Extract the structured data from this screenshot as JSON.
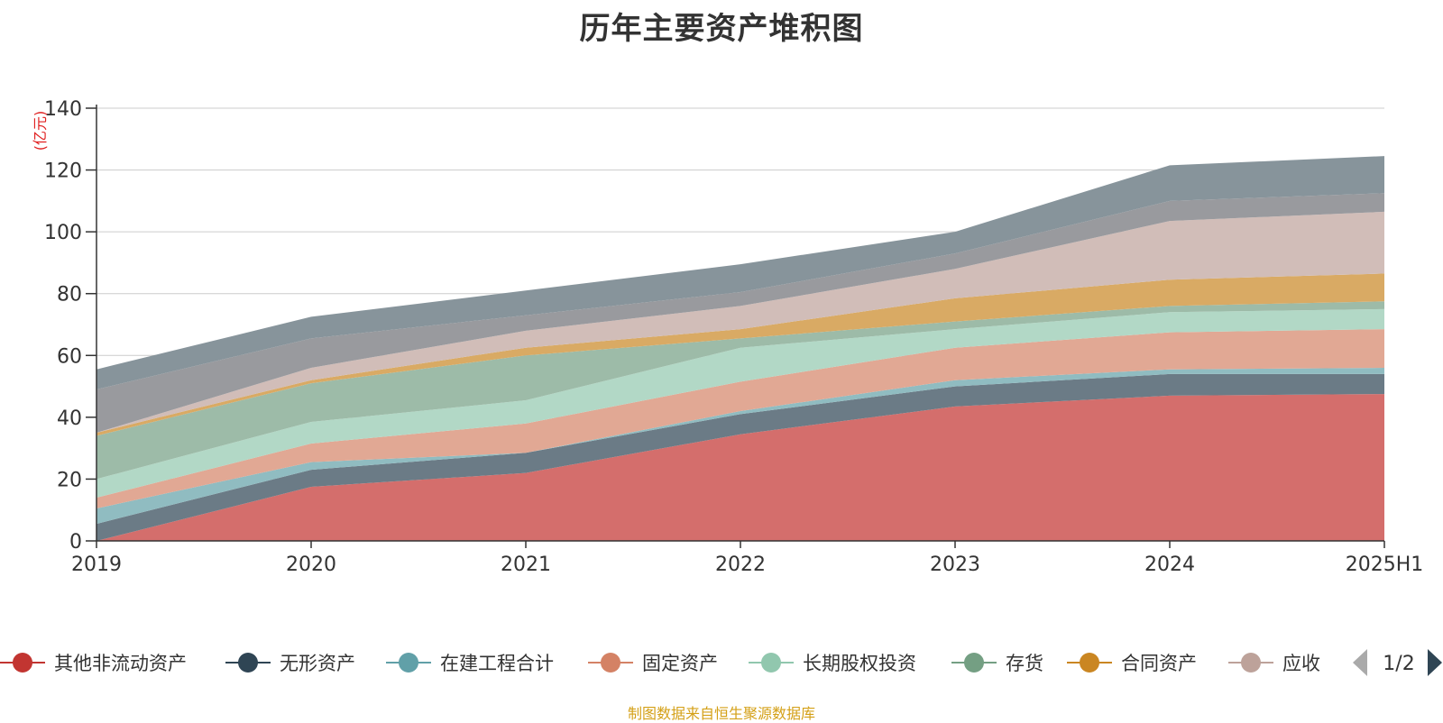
{
  "chart_data": {
    "type": "area",
    "stacked": true,
    "title": "历年主要资产堆积图",
    "unit_label": "(亿元)",
    "x": [
      "2019",
      "2020",
      "2021",
      "2022",
      "2023",
      "2024",
      "2025H1"
    ],
    "ylim": [
      0,
      140
    ],
    "yticks": [
      0,
      20,
      40,
      60,
      80,
      100,
      120,
      140
    ],
    "grid": true,
    "legend_position": "bottom",
    "legend_page": "1/2",
    "series": [
      {
        "name": "其他非流动资产",
        "color": "#c23531",
        "fill": "#d46e6c",
        "values": [
          0,
          17.5,
          22,
          34.5,
          43.5,
          47,
          47.5
        ]
      },
      {
        "name": "无形资产",
        "color": "#2f4554",
        "fill": "#6b7b86",
        "values": [
          5.5,
          5.5,
          6.5,
          6.5,
          6.5,
          7,
          6.5
        ]
      },
      {
        "name": "在建工程合计",
        "color": "#61a0a8",
        "fill": "#90bcc1",
        "values": [
          5,
          2.5,
          0,
          1,
          2,
          1.5,
          2
        ]
      },
      {
        "name": "固定资产",
        "color": "#d48265",
        "fill": "#e1a894",
        "values": [
          3.5,
          6,
          9.5,
          9.5,
          10.5,
          12,
          12.5
        ]
      },
      {
        "name": "长期股权投资",
        "color": "#91c7ae",
        "fill": "#b2d8c6",
        "values": [
          6,
          7,
          7.5,
          11,
          6,
          6.5,
          6.5
        ]
      },
      {
        "name": "存货",
        "color": "#749f83",
        "fill": "#9dbba8",
        "values": [
          14,
          12.5,
          14.5,
          3,
          2.5,
          2,
          2.5
        ]
      },
      {
        "name": "合同资产",
        "color": "#ca8622",
        "fill": "#d9aa64",
        "values": [
          1,
          1,
          2.5,
          3,
          7.5,
          8.5,
          9
        ]
      },
      {
        "name": "应收账款",
        "color": "#bda29a",
        "fill": "#d1bdb8",
        "values": [
          0,
          4,
          5.5,
          7.5,
          9.5,
          19,
          20
        ]
      },
      {
        "name": "",
        "color": "#6e7074",
        "fill": "#999a9e",
        "values": [
          14,
          9.5,
          5,
          4.5,
          5,
          6.5,
          6
        ]
      },
      {
        "name": "",
        "color": "#546570",
        "fill": "#87949b",
        "values": [
          6.5,
          7,
          8,
          9,
          7,
          11.5,
          12
        ]
      }
    ],
    "legend_visible_labels": [
      "其他非流动资产",
      "无形资产",
      "在建工程合计",
      "固定资产",
      "长期股权投资",
      "存货",
      "合同资产",
      "应收"
    ]
  },
  "footer_note": "制图数据来自恒生聚源数据库",
  "colors": {
    "grid": "#cccccc",
    "axis": "#333333",
    "page_arrow_inactive": "#aaaaaa",
    "page_arrow_active": "#2f4554"
  }
}
